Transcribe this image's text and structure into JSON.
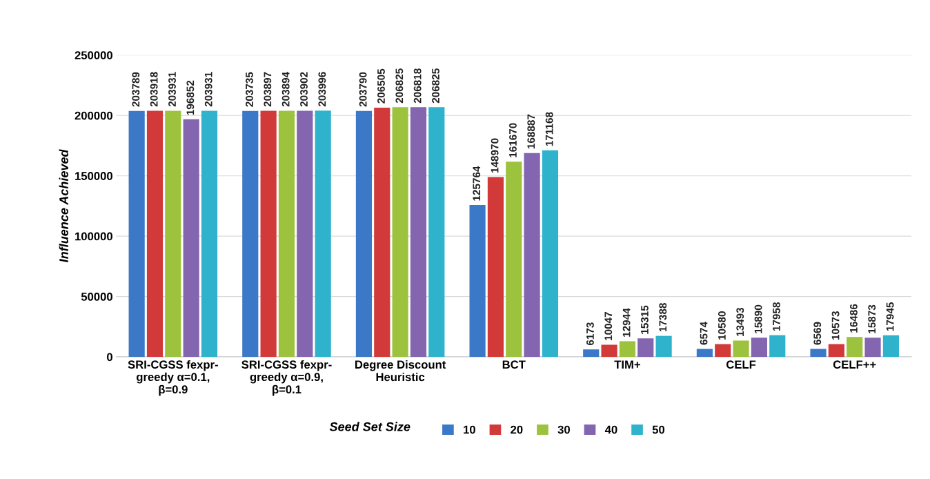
{
  "chart_data": {
    "type": "bar",
    "ylabel": "Influence Achieved",
    "legend_title": "Seed Set Size",
    "categories": [
      "SRI-CGSS fexpr-\ngreedy α=0.1,\nβ=0.9",
      "SRI-CGSS fexpr-\ngreedy α=0.9,\nβ=0.1",
      "Degree Discount\nHeuristic",
      "BCT",
      "TIM+",
      "CELF",
      "CELF++"
    ],
    "series": [
      {
        "name": "10",
        "color": "#3b78c7",
        "values": [
          203789,
          203735,
          203790,
          125764,
          6173,
          6574,
          6569
        ]
      },
      {
        "name": "20",
        "color": "#d23a3a",
        "values": [
          203918,
          203897,
          206505,
          148970,
          10047,
          10580,
          10573
        ]
      },
      {
        "name": "30",
        "color": "#9dc23e",
        "values": [
          203931,
          203894,
          206825,
          161670,
          12944,
          13493,
          16486
        ]
      },
      {
        "name": "40",
        "color": "#8365b0",
        "values": [
          196852,
          203902,
          206818,
          168887,
          15315,
          15890,
          15873
        ]
      },
      {
        "name": "50",
        "color": "#2fb3cc",
        "values": [
          203931,
          203996,
          206825,
          171168,
          17388,
          17958,
          17945
        ]
      }
    ],
    "ylim": [
      0,
      250000
    ],
    "yticks": [
      0,
      50000,
      100000,
      150000,
      200000,
      250000
    ],
    "grid": "y",
    "legend": "bottom",
    "data_labels": true
  }
}
